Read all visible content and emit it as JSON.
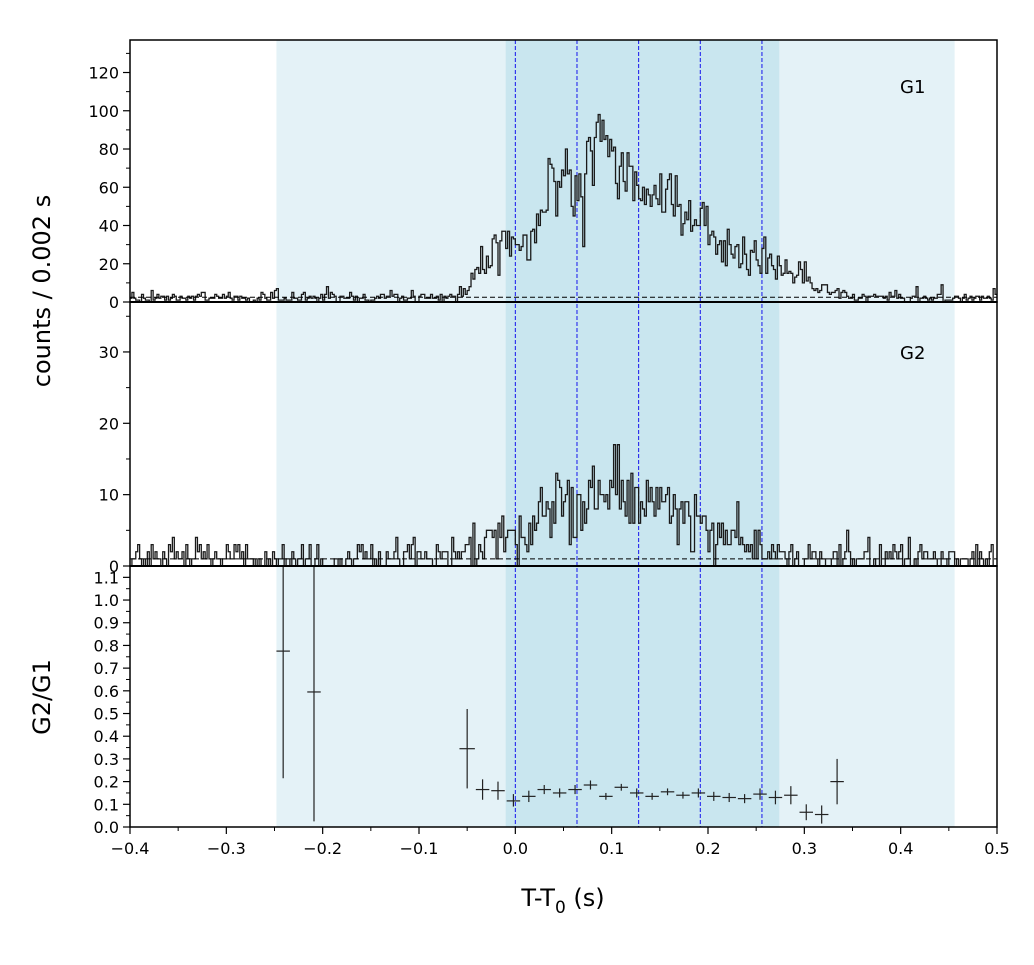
{
  "chart_data": {
    "type": "line",
    "subtype": "stacked-light-curve",
    "xlabel": "T-T",
    "xlabel_sub": "0",
    "xlabel_unit": " (s)",
    "ylabel_top": "counts /  0.002 s",
    "ylabel_bottom": "G2/G1",
    "xlim": [
      -0.4,
      0.5
    ],
    "x_ticks": [
      -0.4,
      -0.3,
      -0.2,
      -0.1,
      0.0,
      0.1,
      0.2,
      0.3,
      0.4,
      0.5
    ],
    "x_tick_labels": [
      "−0.4",
      "−0.3",
      "−0.2",
      "−0.1",
      "0.0",
      "0.1",
      "0.2",
      "0.3",
      "0.4",
      "0.5"
    ],
    "shaded_regions": [
      {
        "x": [
          -0.248,
          0.456
        ],
        "color": "#e4f2f7"
      },
      {
        "x": [
          -0.01,
          0.274
        ],
        "color": "#c9e6ef"
      }
    ],
    "vertical_lines": {
      "x": [
        0.0,
        0.064,
        0.128,
        0.192,
        0.256
      ],
      "color": "#1515ee"
    },
    "panels": [
      {
        "label": "G1",
        "ylim": [
          0,
          137
        ],
        "y_ticks": [
          0,
          20,
          40,
          60,
          80,
          100,
          120
        ],
        "y_tick_labels": [
          "0",
          "20",
          "40",
          "60",
          "80",
          "100",
          "120"
        ],
        "background_level": 2.5,
        "series": {
          "bin_width": 0.002,
          "x": [
            -0.4,
            -0.3,
            -0.1,
            -0.06,
            -0.05,
            -0.04,
            -0.03,
            -0.02,
            -0.01,
            0.0,
            0.01,
            0.02,
            0.03,
            0.04,
            0.05,
            0.06,
            0.07,
            0.08,
            0.09,
            0.1,
            0.11,
            0.12,
            0.13,
            0.14,
            0.15,
            0.16,
            0.17,
            0.18,
            0.19,
            0.2,
            0.21,
            0.22,
            0.23,
            0.24,
            0.25,
            0.26,
            0.27,
            0.28,
            0.29,
            0.3,
            0.31,
            0.32,
            0.33,
            0.35,
            0.4,
            0.5
          ],
          "y": [
            2,
            2.5,
            2.5,
            3,
            8,
            18,
            20,
            28,
            34,
            30,
            30,
            40,
            52,
            62,
            66,
            58,
            66,
            78,
            95,
            80,
            72,
            68,
            58,
            58,
            56,
            54,
            50,
            48,
            42,
            38,
            30,
            26,
            24,
            23,
            24,
            22,
            20,
            17,
            15,
            12,
            9,
            7,
            5,
            3,
            2.5,
            2.5
          ]
        }
      },
      {
        "label": "G2",
        "ylim": [
          0,
          37
        ],
        "y_ticks": [
          0,
          10,
          20,
          30
        ],
        "y_tick_labels": [
          "0",
          "10",
          "20",
          "30"
        ],
        "background_level": 1,
        "series": {
          "bin_width": 0.002,
          "x": [
            -0.4,
            -0.3,
            -0.1,
            -0.06,
            -0.05,
            -0.04,
            -0.03,
            -0.02,
            -0.01,
            0.0,
            0.01,
            0.02,
            0.03,
            0.04,
            0.05,
            0.06,
            0.07,
            0.08,
            0.09,
            0.1,
            0.11,
            0.12,
            0.13,
            0.14,
            0.15,
            0.16,
            0.17,
            0.18,
            0.19,
            0.2,
            0.21,
            0.22,
            0.23,
            0.24,
            0.25,
            0.26,
            0.27,
            0.28,
            0.3,
            0.35,
            0.4,
            0.5
          ],
          "y": [
            1.2,
            1.2,
            1.2,
            1.5,
            2,
            3,
            3.5,
            4,
            4.5,
            4,
            5,
            7,
            8,
            9,
            9,
            8,
            9,
            10,
            13,
            12,
            11,
            10,
            9,
            9,
            9,
            8,
            8,
            8,
            7,
            6,
            5,
            4,
            3.5,
            3,
            2.5,
            2.5,
            2,
            1.5,
            1.2,
            1.2,
            1.2,
            1.2
          ]
        }
      },
      {
        "label": "",
        "ylim": [
          0,
          1.15
        ],
        "y_ticks": [
          0,
          0.1,
          0.2,
          0.3,
          0.4,
          0.5,
          0.6,
          0.7,
          0.8,
          0.9,
          1.0,
          1.1
        ],
        "y_tick_labels": [
          "0.0",
          "0.1",
          "0.2",
          "0.3",
          "0.4",
          "0.5",
          "0.6",
          "0.7",
          "0.8",
          "0.9",
          "1.0",
          "1.1"
        ],
        "type": "errorbar",
        "points": [
          {
            "x": -0.241,
            "y": 0.775,
            "xerr": 0.007,
            "ylo": 0.215,
            "yhi": 1.15
          },
          {
            "x": -0.209,
            "y": 0.595,
            "xerr": 0.007,
            "ylo": 0.025,
            "yhi": 1.15
          },
          {
            "x": -0.05,
            "y": 0.345,
            "xerr": 0.008,
            "ylo": 0.17,
            "yhi": 0.52
          },
          {
            "x": -0.034,
            "y": 0.165,
            "xerr": 0.007,
            "ylo": 0.12,
            "yhi": 0.21
          },
          {
            "x": -0.018,
            "y": 0.16,
            "xerr": 0.007,
            "ylo": 0.12,
            "yhi": 0.2
          },
          {
            "x": -0.002,
            "y": 0.115,
            "xerr": 0.007,
            "ylo": 0.09,
            "yhi": 0.145
          },
          {
            "x": 0.014,
            "y": 0.135,
            "xerr": 0.007,
            "ylo": 0.11,
            "yhi": 0.16
          },
          {
            "x": 0.03,
            "y": 0.165,
            "xerr": 0.007,
            "ylo": 0.145,
            "yhi": 0.185
          },
          {
            "x": 0.046,
            "y": 0.15,
            "xerr": 0.007,
            "ylo": 0.13,
            "yhi": 0.17
          },
          {
            "x": 0.062,
            "y": 0.165,
            "xerr": 0.007,
            "ylo": 0.145,
            "yhi": 0.185
          },
          {
            "x": 0.078,
            "y": 0.185,
            "xerr": 0.007,
            "ylo": 0.165,
            "yhi": 0.205
          },
          {
            "x": 0.094,
            "y": 0.135,
            "xerr": 0.007,
            "ylo": 0.12,
            "yhi": 0.15
          },
          {
            "x": 0.11,
            "y": 0.175,
            "xerr": 0.007,
            "ylo": 0.16,
            "yhi": 0.19
          },
          {
            "x": 0.126,
            "y": 0.15,
            "xerr": 0.007,
            "ylo": 0.13,
            "yhi": 0.17
          },
          {
            "x": 0.142,
            "y": 0.135,
            "xerr": 0.007,
            "ylo": 0.12,
            "yhi": 0.15
          },
          {
            "x": 0.158,
            "y": 0.155,
            "xerr": 0.007,
            "ylo": 0.14,
            "yhi": 0.17
          },
          {
            "x": 0.174,
            "y": 0.14,
            "xerr": 0.007,
            "ylo": 0.125,
            "yhi": 0.155
          },
          {
            "x": 0.19,
            "y": 0.15,
            "xerr": 0.007,
            "ylo": 0.13,
            "yhi": 0.17
          },
          {
            "x": 0.206,
            "y": 0.135,
            "xerr": 0.007,
            "ylo": 0.115,
            "yhi": 0.155
          },
          {
            "x": 0.222,
            "y": 0.13,
            "xerr": 0.007,
            "ylo": 0.11,
            "yhi": 0.15
          },
          {
            "x": 0.238,
            "y": 0.125,
            "xerr": 0.007,
            "ylo": 0.105,
            "yhi": 0.145
          },
          {
            "x": 0.254,
            "y": 0.145,
            "xerr": 0.007,
            "ylo": 0.12,
            "yhi": 0.17
          },
          {
            "x": 0.27,
            "y": 0.13,
            "xerr": 0.007,
            "ylo": 0.1,
            "yhi": 0.16
          },
          {
            "x": 0.286,
            "y": 0.14,
            "xerr": 0.007,
            "ylo": 0.1,
            "yhi": 0.18
          },
          {
            "x": 0.302,
            "y": 0.065,
            "xerr": 0.007,
            "ylo": 0.03,
            "yhi": 0.1
          },
          {
            "x": 0.318,
            "y": 0.055,
            "xerr": 0.007,
            "ylo": 0.015,
            "yhi": 0.095
          },
          {
            "x": 0.334,
            "y": 0.2,
            "xerr": 0.007,
            "ylo": 0.1,
            "yhi": 0.3
          }
        ]
      }
    ]
  }
}
